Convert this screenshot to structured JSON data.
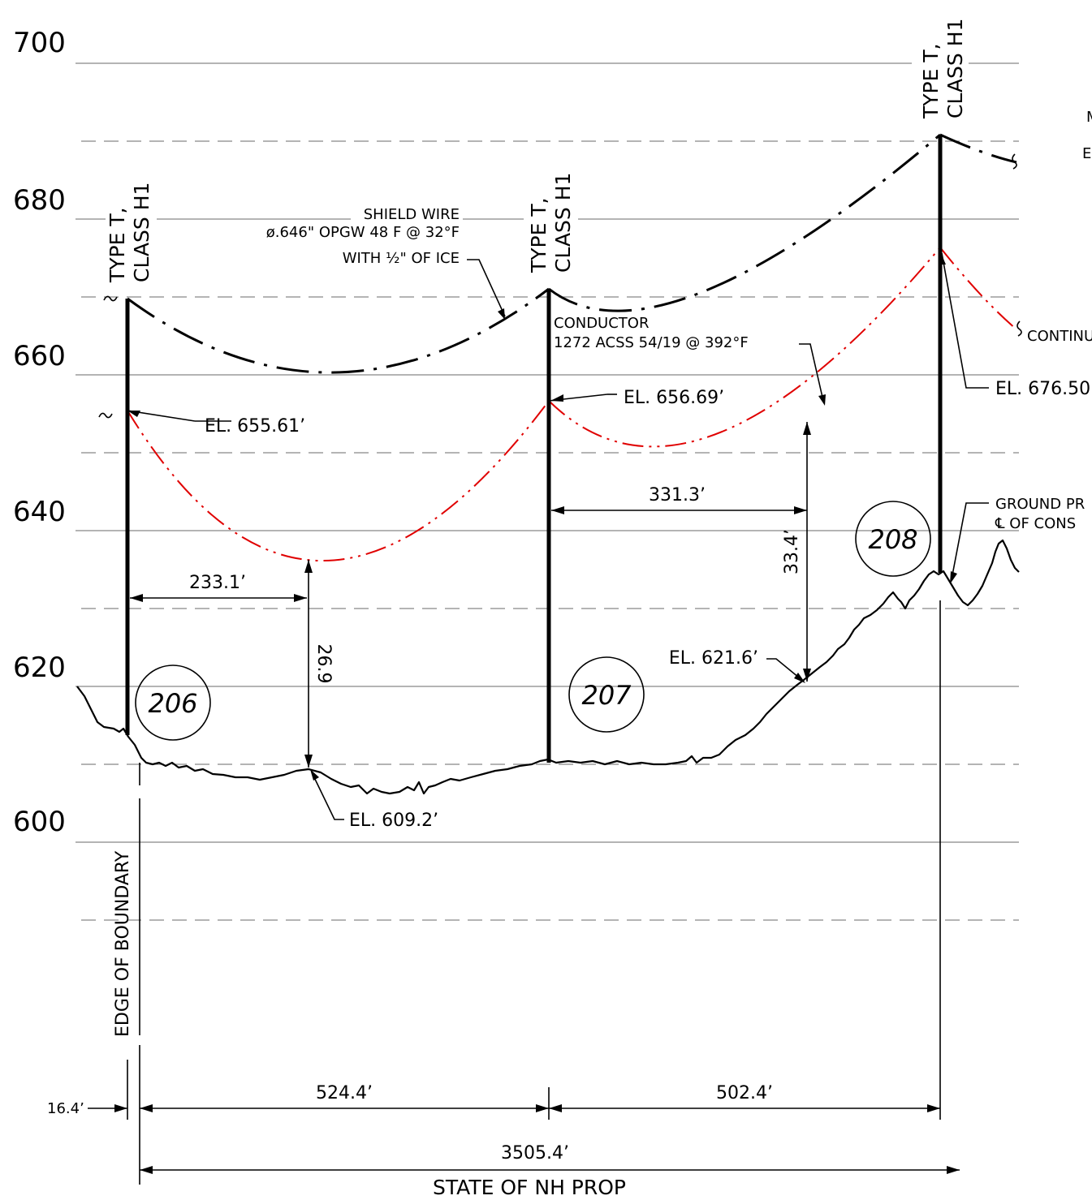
{
  "elevation_axis": {
    "unit": "",
    "labels": [
      "700",
      "680",
      "660",
      "640",
      "620",
      "600"
    ]
  },
  "structures": [
    {
      "number": "206",
      "type_label": "TYPE T,",
      "class_label": "CLASS H1",
      "attachment_elevation": "EL. 655.61’"
    },
    {
      "number": "207",
      "type_label": "TYPE T,",
      "class_label": "CLASS H1",
      "attachment_elevation": "EL. 656.69’"
    },
    {
      "number": "208",
      "type_label": "TYPE T,",
      "class_label": "CLASS H1",
      "attachment_elevation": "EL. 676.50’"
    }
  ],
  "shield_wire": {
    "title": "SHIELD WIRE",
    "spec": "ø.646\" OPGW 48 F @ 32°F",
    "ice": "WITH ½\" OF ICE"
  },
  "conductor": {
    "title": "CONDUCTOR",
    "spec": "1272 ACSS 54/19 @ 392°F"
  },
  "clearances": [
    {
      "horizontal": "233.1’",
      "vertical": "26.9",
      "ground_elevation": "EL. 609.2’"
    },
    {
      "horizontal": "331.3’",
      "vertical": "33.4’",
      "ground_elevation": "EL. 621.6’"
    }
  ],
  "spans": {
    "offset": "16.4’",
    "span_206_207": "524.4’",
    "span_207_208": "502.4’",
    "total": "3505.4’"
  },
  "boundary": {
    "edge_label": "EDGE OF BOUNDARY",
    "property_label": "STATE OF NH PROP"
  },
  "right_notes": {
    "continue_label": "CONTINU",
    "ground_profile_1": "GROUND PR",
    "ground_profile_2": "℄ OF CONS",
    "cut_m": "M",
    "cut_e": "E"
  },
  "colors": {
    "conductor": "#e00000",
    "shield": "#000000",
    "grid": "#888888"
  }
}
